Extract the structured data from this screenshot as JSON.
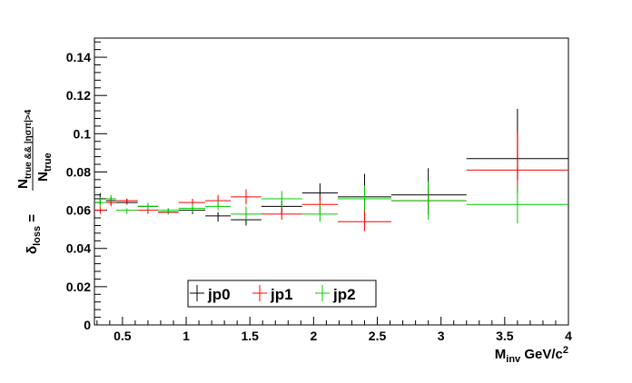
{
  "chart_data": {
    "type": "scatter",
    "xlim": [
      0.28,
      4.0
    ],
    "ylim": [
      0,
      0.15
    ],
    "x_ticks": [
      "0.5",
      "1",
      "1.5",
      "2",
      "2.5",
      "3",
      "3.5",
      "4"
    ],
    "y_ticks": [
      "0",
      "0.02",
      "0.04",
      "0.06",
      "0.08",
      "0.1",
      "0.12",
      "0.14"
    ],
    "x_tick_values": [
      0.5,
      1,
      1.5,
      2,
      2.5,
      3,
      3.5,
      4
    ],
    "y_tick_values": [
      0,
      0.02,
      0.04,
      0.06,
      0.08,
      0.1,
      0.12,
      0.14
    ],
    "xlabel": {
      "main": "M",
      "sub": "inv",
      "rest": " GeV/c",
      "sup": "2"
    },
    "ylabel": {
      "delta": "δ",
      "delta_sub": "loss",
      "equals": " = ",
      "num": "N",
      "num_sub": "true && |ησπ|>4",
      "den": "N",
      "den_sub": "true"
    },
    "legend_position": "bottom-left",
    "series": [
      {
        "name": "jp0",
        "color": "#000000",
        "points": [
          {
            "x": 0.325,
            "xlo": 0.28,
            "xhi": 0.37,
            "y": 0.066,
            "ylo": 0.063,
            "yhi": 0.069
          },
          {
            "x": 0.41,
            "xlo": 0.37,
            "xhi": 0.45,
            "y": 0.065,
            "ylo": 0.063,
            "yhi": 0.067
          },
          {
            "x": 0.535,
            "xlo": 0.45,
            "xhi": 0.62,
            "y": 0.064,
            "ylo": 0.063,
            "yhi": 0.066
          },
          {
            "x": 0.7,
            "xlo": 0.62,
            "xhi": 0.78,
            "y": 0.062,
            "ylo": 0.06,
            "yhi": 0.063
          },
          {
            "x": 0.86,
            "xlo": 0.78,
            "xhi": 0.94,
            "y": 0.059,
            "ylo": 0.058,
            "yhi": 0.061
          },
          {
            "x": 1.05,
            "xlo": 0.94,
            "xhi": 1.15,
            "y": 0.06,
            "ylo": 0.058,
            "yhi": 0.062
          },
          {
            "x": 1.25,
            "xlo": 1.15,
            "xhi": 1.35,
            "y": 0.057,
            "ylo": 0.054,
            "yhi": 0.059
          },
          {
            "x": 1.47,
            "xlo": 1.35,
            "xhi": 1.59,
            "y": 0.055,
            "ylo": 0.052,
            "yhi": 0.058
          },
          {
            "x": 1.75,
            "xlo": 1.59,
            "xhi": 1.91,
            "y": 0.062,
            "ylo": 0.058,
            "yhi": 0.065
          },
          {
            "x": 2.05,
            "xlo": 1.91,
            "xhi": 2.19,
            "y": 0.069,
            "ylo": 0.065,
            "yhi": 0.074
          },
          {
            "x": 2.4,
            "xlo": 2.19,
            "xhi": 2.61,
            "y": 0.067,
            "ylo": 0.059,
            "yhi": 0.079
          },
          {
            "x": 2.9,
            "xlo": 2.61,
            "xhi": 3.2,
            "y": 0.068,
            "ylo": 0.058,
            "yhi": 0.082
          },
          {
            "x": 3.6,
            "xlo": 3.2,
            "xhi": 4.0,
            "y": 0.087,
            "ylo": 0.076,
            "yhi": 0.113
          }
        ]
      },
      {
        "name": "jp1",
        "color": "#ff0000",
        "points": [
          {
            "x": 0.325,
            "xlo": 0.28,
            "xhi": 0.37,
            "y": 0.06,
            "ylo": 0.058,
            "yhi": 0.062
          },
          {
            "x": 0.41,
            "xlo": 0.37,
            "xhi": 0.45,
            "y": 0.064,
            "ylo": 0.062,
            "yhi": 0.066
          },
          {
            "x": 0.535,
            "xlo": 0.45,
            "xhi": 0.62,
            "y": 0.065,
            "ylo": 0.063,
            "yhi": 0.066
          },
          {
            "x": 0.7,
            "xlo": 0.62,
            "xhi": 0.78,
            "y": 0.06,
            "ylo": 0.058,
            "yhi": 0.061
          },
          {
            "x": 0.86,
            "xlo": 0.78,
            "xhi": 0.94,
            "y": 0.059,
            "ylo": 0.058,
            "yhi": 0.061
          },
          {
            "x": 1.05,
            "xlo": 0.94,
            "xhi": 1.15,
            "y": 0.064,
            "ylo": 0.062,
            "yhi": 0.066
          },
          {
            "x": 1.25,
            "xlo": 1.15,
            "xhi": 1.35,
            "y": 0.065,
            "ylo": 0.062,
            "yhi": 0.068
          },
          {
            "x": 1.47,
            "xlo": 1.35,
            "xhi": 1.59,
            "y": 0.067,
            "ylo": 0.063,
            "yhi": 0.071
          },
          {
            "x": 1.75,
            "xlo": 1.59,
            "xhi": 1.91,
            "y": 0.058,
            "ylo": 0.055,
            "yhi": 0.061
          },
          {
            "x": 2.05,
            "xlo": 1.91,
            "xhi": 2.19,
            "y": 0.063,
            "ylo": 0.058,
            "yhi": 0.068
          },
          {
            "x": 2.4,
            "xlo": 2.19,
            "xhi": 2.61,
            "y": 0.054,
            "ylo": 0.049,
            "yhi": 0.06
          },
          {
            "x": 2.9,
            "xlo": 2.61,
            "xhi": 3.2,
            "y": 0.065,
            "ylo": 0.06,
            "yhi": 0.071
          },
          {
            "x": 3.6,
            "xlo": 3.2,
            "xhi": 4.0,
            "y": 0.081,
            "ylo": 0.069,
            "yhi": 0.101
          }
        ]
      },
      {
        "name": "jp2",
        "color": "#00cc00",
        "points": [
          {
            "x": 0.325,
            "xlo": 0.28,
            "xhi": 0.37,
            "y": 0.064,
            "ylo": 0.062,
            "yhi": 0.067
          },
          {
            "x": 0.41,
            "xlo": 0.37,
            "xhi": 0.45,
            "y": 0.066,
            "ylo": 0.064,
            "yhi": 0.068
          },
          {
            "x": 0.535,
            "xlo": 0.45,
            "xhi": 0.62,
            "y": 0.06,
            "ylo": 0.058,
            "yhi": 0.061
          },
          {
            "x": 0.7,
            "xlo": 0.62,
            "xhi": 0.78,
            "y": 0.062,
            "ylo": 0.06,
            "yhi": 0.064
          },
          {
            "x": 0.86,
            "xlo": 0.78,
            "xhi": 0.94,
            "y": 0.06,
            "ylo": 0.058,
            "yhi": 0.061
          },
          {
            "x": 1.05,
            "xlo": 0.94,
            "xhi": 1.15,
            "y": 0.061,
            "ylo": 0.059,
            "yhi": 0.063
          },
          {
            "x": 1.25,
            "xlo": 1.15,
            "xhi": 1.35,
            "y": 0.062,
            "ylo": 0.06,
            "yhi": 0.065
          },
          {
            "x": 1.47,
            "xlo": 1.35,
            "xhi": 1.59,
            "y": 0.058,
            "ylo": 0.055,
            "yhi": 0.062
          },
          {
            "x": 1.75,
            "xlo": 1.59,
            "xhi": 1.91,
            "y": 0.066,
            "ylo": 0.061,
            "yhi": 0.07
          },
          {
            "x": 2.05,
            "xlo": 1.91,
            "xhi": 2.19,
            "y": 0.058,
            "ylo": 0.054,
            "yhi": 0.063
          },
          {
            "x": 2.4,
            "xlo": 2.19,
            "xhi": 2.61,
            "y": 0.066,
            "ylo": 0.06,
            "yhi": 0.073
          },
          {
            "x": 2.9,
            "xlo": 2.61,
            "xhi": 3.2,
            "y": 0.065,
            "ylo": 0.055,
            "yhi": 0.075
          },
          {
            "x": 3.6,
            "xlo": 3.2,
            "xhi": 4.0,
            "y": 0.063,
            "ylo": 0.053,
            "yhi": 0.073
          }
        ]
      }
    ]
  }
}
